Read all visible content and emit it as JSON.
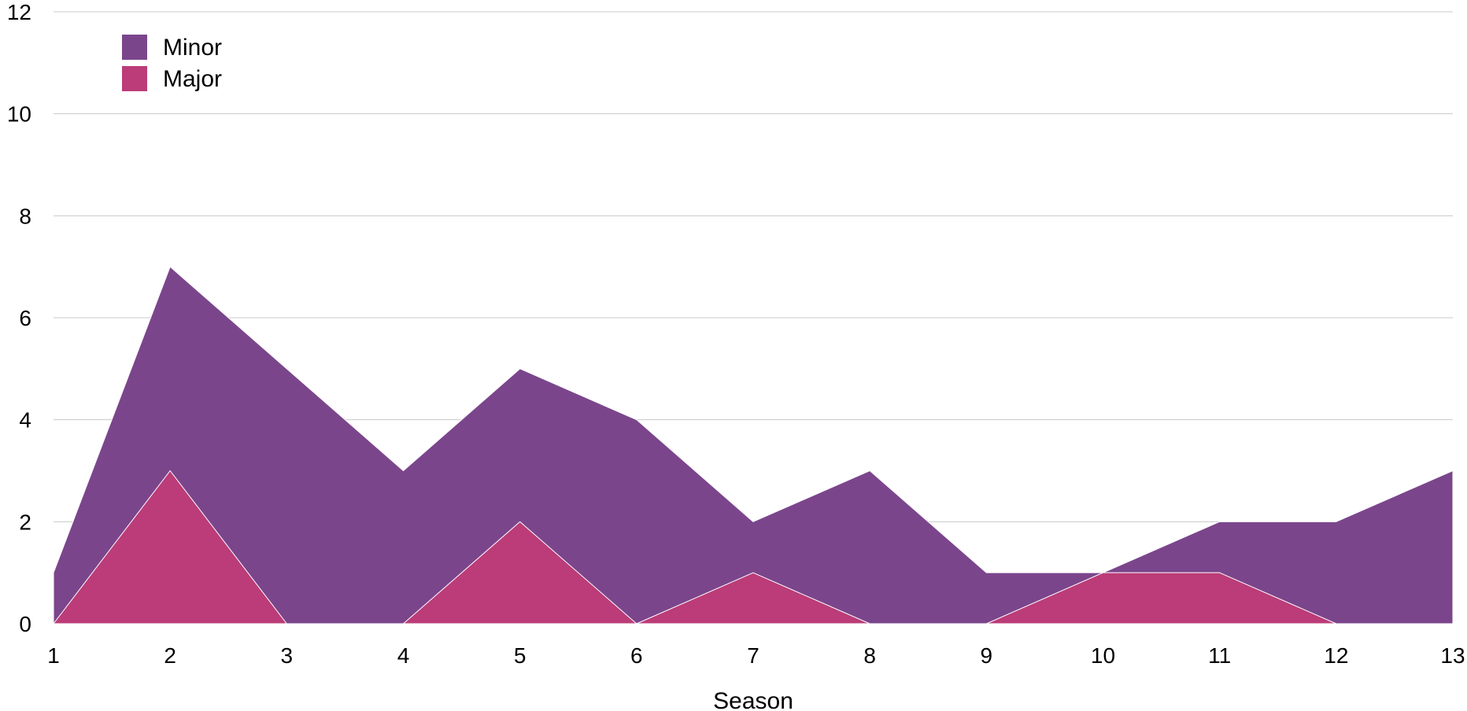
{
  "chart_data": {
    "type": "area",
    "title": "",
    "xlabel": "Season",
    "ylabel": "",
    "x": [
      1,
      2,
      3,
      4,
      5,
      6,
      7,
      8,
      9,
      10,
      11,
      12,
      13
    ],
    "ylim": [
      0,
      12
    ],
    "yticks": [
      0,
      2,
      4,
      6,
      8,
      10,
      12
    ],
    "grid": true,
    "legend_position": "top-left",
    "series": [
      {
        "name": "Minor",
        "color": "#7b458c",
        "values": [
          1,
          7,
          5,
          3,
          5,
          4,
          2,
          3,
          1,
          1,
          2,
          2,
          3
        ]
      },
      {
        "name": "Major",
        "color": "#bb3c78",
        "values": [
          0,
          3,
          0,
          0,
          2,
          0,
          1,
          0,
          0,
          1,
          1,
          0,
          0
        ]
      }
    ]
  }
}
